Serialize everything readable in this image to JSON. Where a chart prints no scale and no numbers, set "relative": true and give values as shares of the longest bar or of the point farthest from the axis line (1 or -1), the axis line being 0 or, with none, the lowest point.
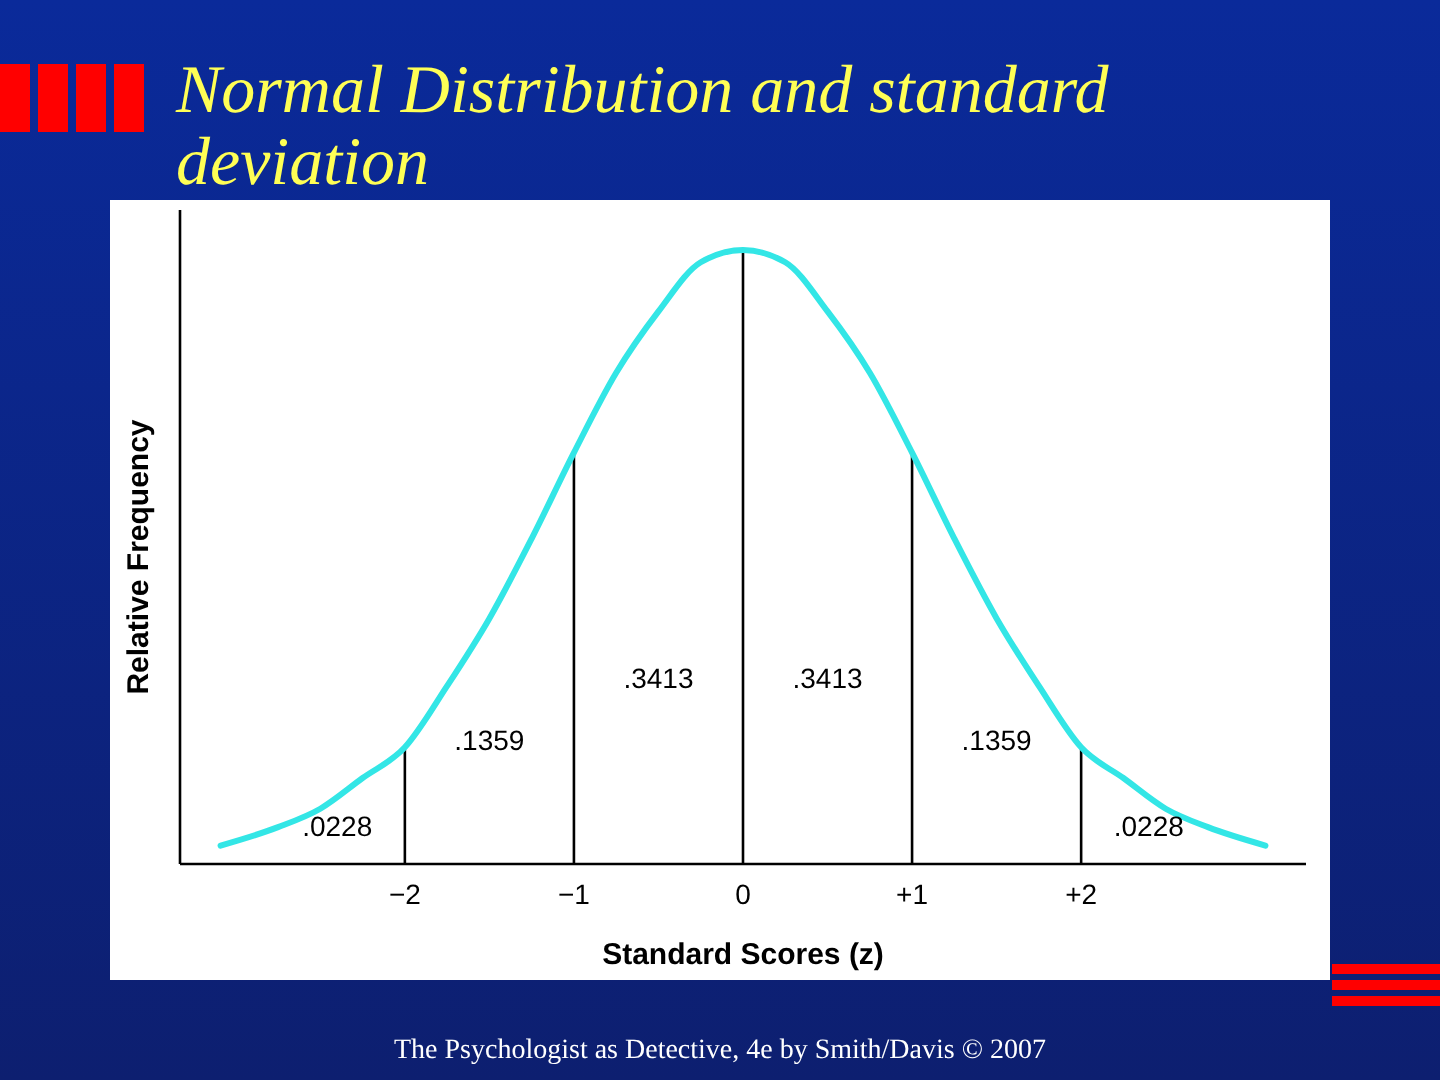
{
  "chart_data": {
    "type": "line",
    "title": "Normal Distribution and standard deviation",
    "xlabel": "Standard Scores (z)",
    "ylabel": "Relative Frequency",
    "relative": true,
    "tick_labels": "x",
    "grid": false,
    "marker": "none",
    "line_style": "solid",
    "x": [
      -3.09,
      -2.75,
      -2.5,
      -2.25,
      -2,
      -1.75,
      -1.5,
      -1.25,
      -1,
      -0.75,
      -0.5,
      -0.25,
      0,
      0.25,
      0.5,
      0.75,
      1,
      1.25,
      1.5,
      1.75,
      2,
      2.25,
      2.5,
      2.75,
      3.09
    ],
    "series": [
      {
        "color": "#33e6e6",
        "values": [
          0.03,
          0.06,
          0.09,
          0.14,
          0.19,
          0.29,
          0.4,
          0.53,
          0.67,
          0.8,
          0.9,
          0.98,
          1.0,
          0.98,
          0.9,
          0.8,
          0.67,
          0.53,
          0.4,
          0.29,
          0.19,
          0.14,
          0.09,
          0.06,
          0.03
        ]
      }
    ],
    "xlim": [
      -3.33,
      3.33
    ],
    "xticks": [
      {
        "value": -2,
        "label": "−2"
      },
      {
        "value": -1,
        "label": "−1"
      },
      0,
      {
        "value": 1,
        "label": "+1"
      },
      {
        "value": 2,
        "label": "+2"
      }
    ],
    "ref_lines": [
      {
        "axis": "x",
        "value": -2
      },
      {
        "axis": "x",
        "value": -1
      },
      {
        "axis": "x",
        "value": 0
      },
      {
        "axis": "x",
        "value": 1
      },
      {
        "axis": "x",
        "value": 2
      }
    ],
    "annotations": [
      ".0228",
      ".1359",
      ".3413",
      ".3413",
      ".1359",
      ".0228",
      "The Psychologist as Detective, 4e by Smith/Davis © 2007"
    ]
  }
}
